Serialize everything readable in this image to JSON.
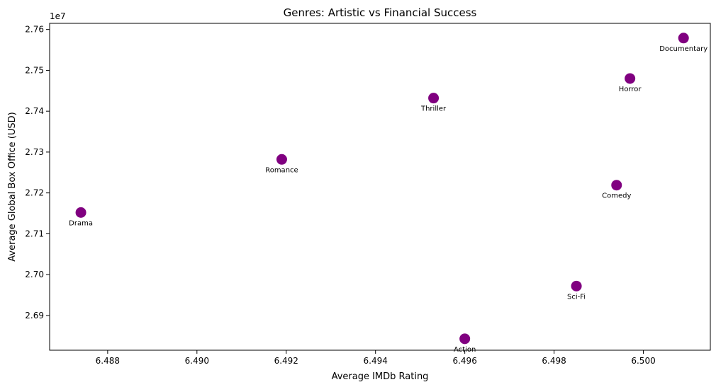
{
  "chart_data": {
    "type": "scatter",
    "title": "Genres: Artistic vs Financial Success",
    "xlabel": "Average IMDb Rating",
    "ylabel": "Average Global Box Office (USD)",
    "y_offset_label": "1e7",
    "xlim": [
      6.4867,
      6.5015
    ],
    "ylim": [
      2.6815,
      2.7615
    ],
    "x_ticks": [
      6.488,
      6.49,
      6.492,
      6.494,
      6.496,
      6.498,
      6.5
    ],
    "x_tick_labels": [
      "6.488",
      "6.490",
      "6.492",
      "6.494",
      "6.496",
      "6.498",
      "6.500"
    ],
    "y_ticks": [
      2.69,
      2.7,
      2.71,
      2.72,
      2.73,
      2.74,
      2.75,
      2.76
    ],
    "y_tick_labels": [
      "2.69",
      "2.70",
      "2.71",
      "2.72",
      "2.73",
      "2.74",
      "2.75",
      "2.76"
    ],
    "marker_color": "#800080",
    "grid": false,
    "points": [
      {
        "label": "Drama",
        "x": 6.4874,
        "y": 2.7152
      },
      {
        "label": "Romance",
        "x": 6.4919,
        "y": 2.7282
      },
      {
        "label": "Thriller",
        "x": 6.4953,
        "y": 2.7432
      },
      {
        "label": "Action",
        "x": 6.496,
        "y": 2.6843
      },
      {
        "label": "Sci-Fi",
        "x": 6.4985,
        "y": 2.6972
      },
      {
        "label": "Comedy",
        "x": 6.4994,
        "y": 2.7219
      },
      {
        "label": "Horror",
        "x": 6.4997,
        "y": 2.748
      },
      {
        "label": "Documentary",
        "x": 6.5009,
        "y": 2.7579
      }
    ]
  }
}
